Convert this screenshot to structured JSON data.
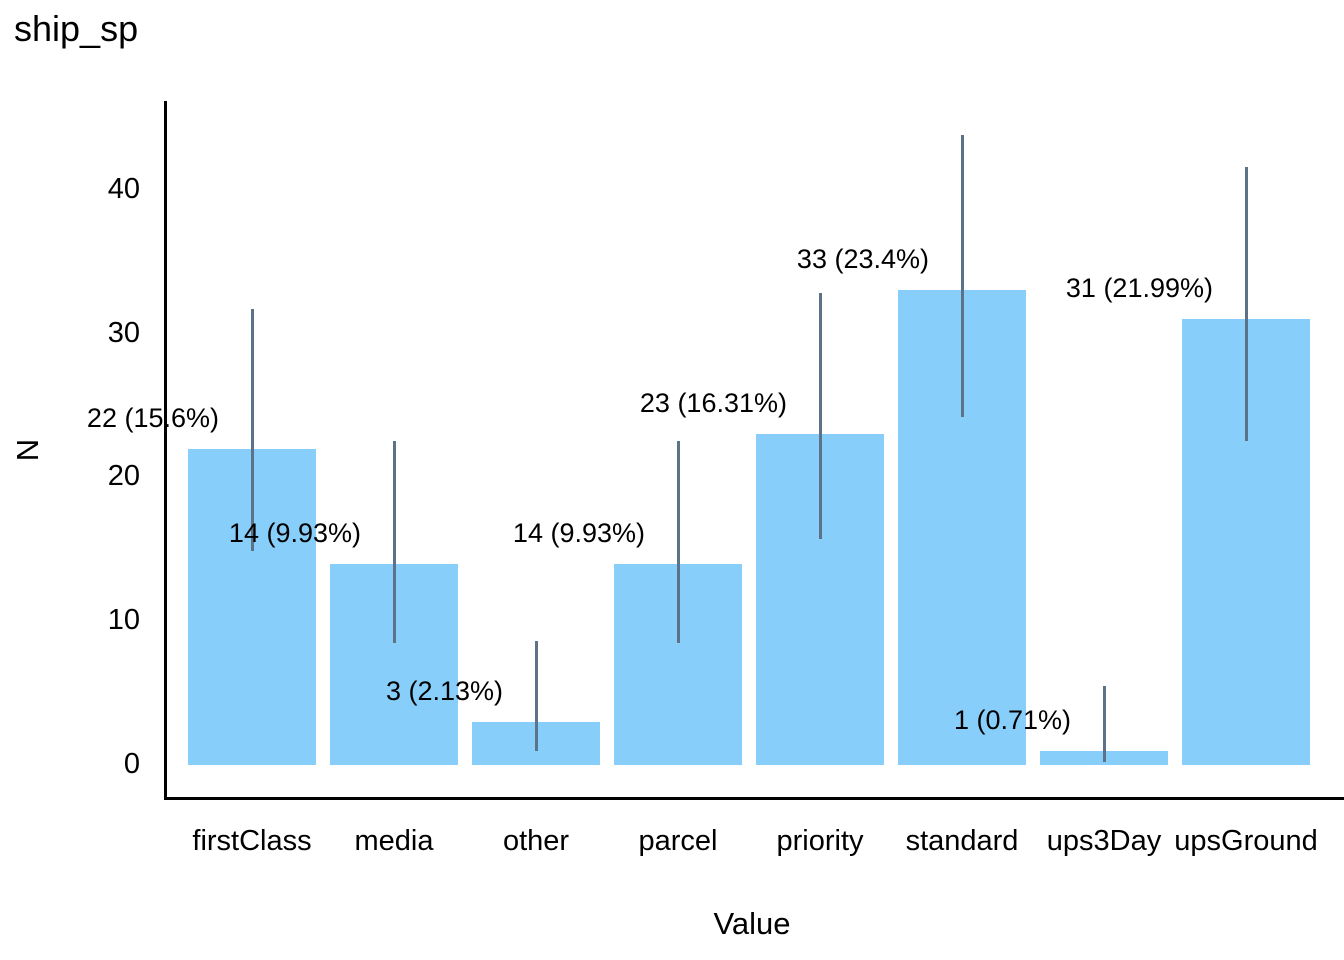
{
  "title": "ship_sp",
  "chart_data": {
    "type": "bar",
    "title": "ship_sp",
    "xlabel": "Value",
    "ylabel": "N",
    "categories": [
      "firstClass",
      "media",
      "other",
      "parcel",
      "priority",
      "standard",
      "ups3Day",
      "upsGround"
    ],
    "values": [
      22,
      14,
      3,
      14,
      23,
      33,
      1,
      31
    ],
    "bar_labels": [
      "22 (15.6%)",
      "14 (9.93%)",
      "3 (2.13%)",
      "14 (9.93%)",
      "23 (16.31%)",
      "33 (23.4%)",
      "1 (0.71%)",
      "31 (21.99%)"
    ],
    "error_low": [
      14.9,
      8.5,
      1.0,
      8.5,
      15.7,
      24.2,
      0.2,
      22.5
    ],
    "error_high": [
      31.7,
      22.5,
      8.6,
      22.5,
      32.8,
      43.8,
      5.5,
      41.6
    ],
    "yticks": [
      0,
      10,
      20,
      30,
      40
    ],
    "ylim": [
      -2.2,
      46.2
    ],
    "grid": false,
    "legend": false,
    "bar_color": "#87CEFA",
    "error_bar_color": "#5C7387",
    "axis_color": "#000000",
    "text_color": "#000000"
  }
}
